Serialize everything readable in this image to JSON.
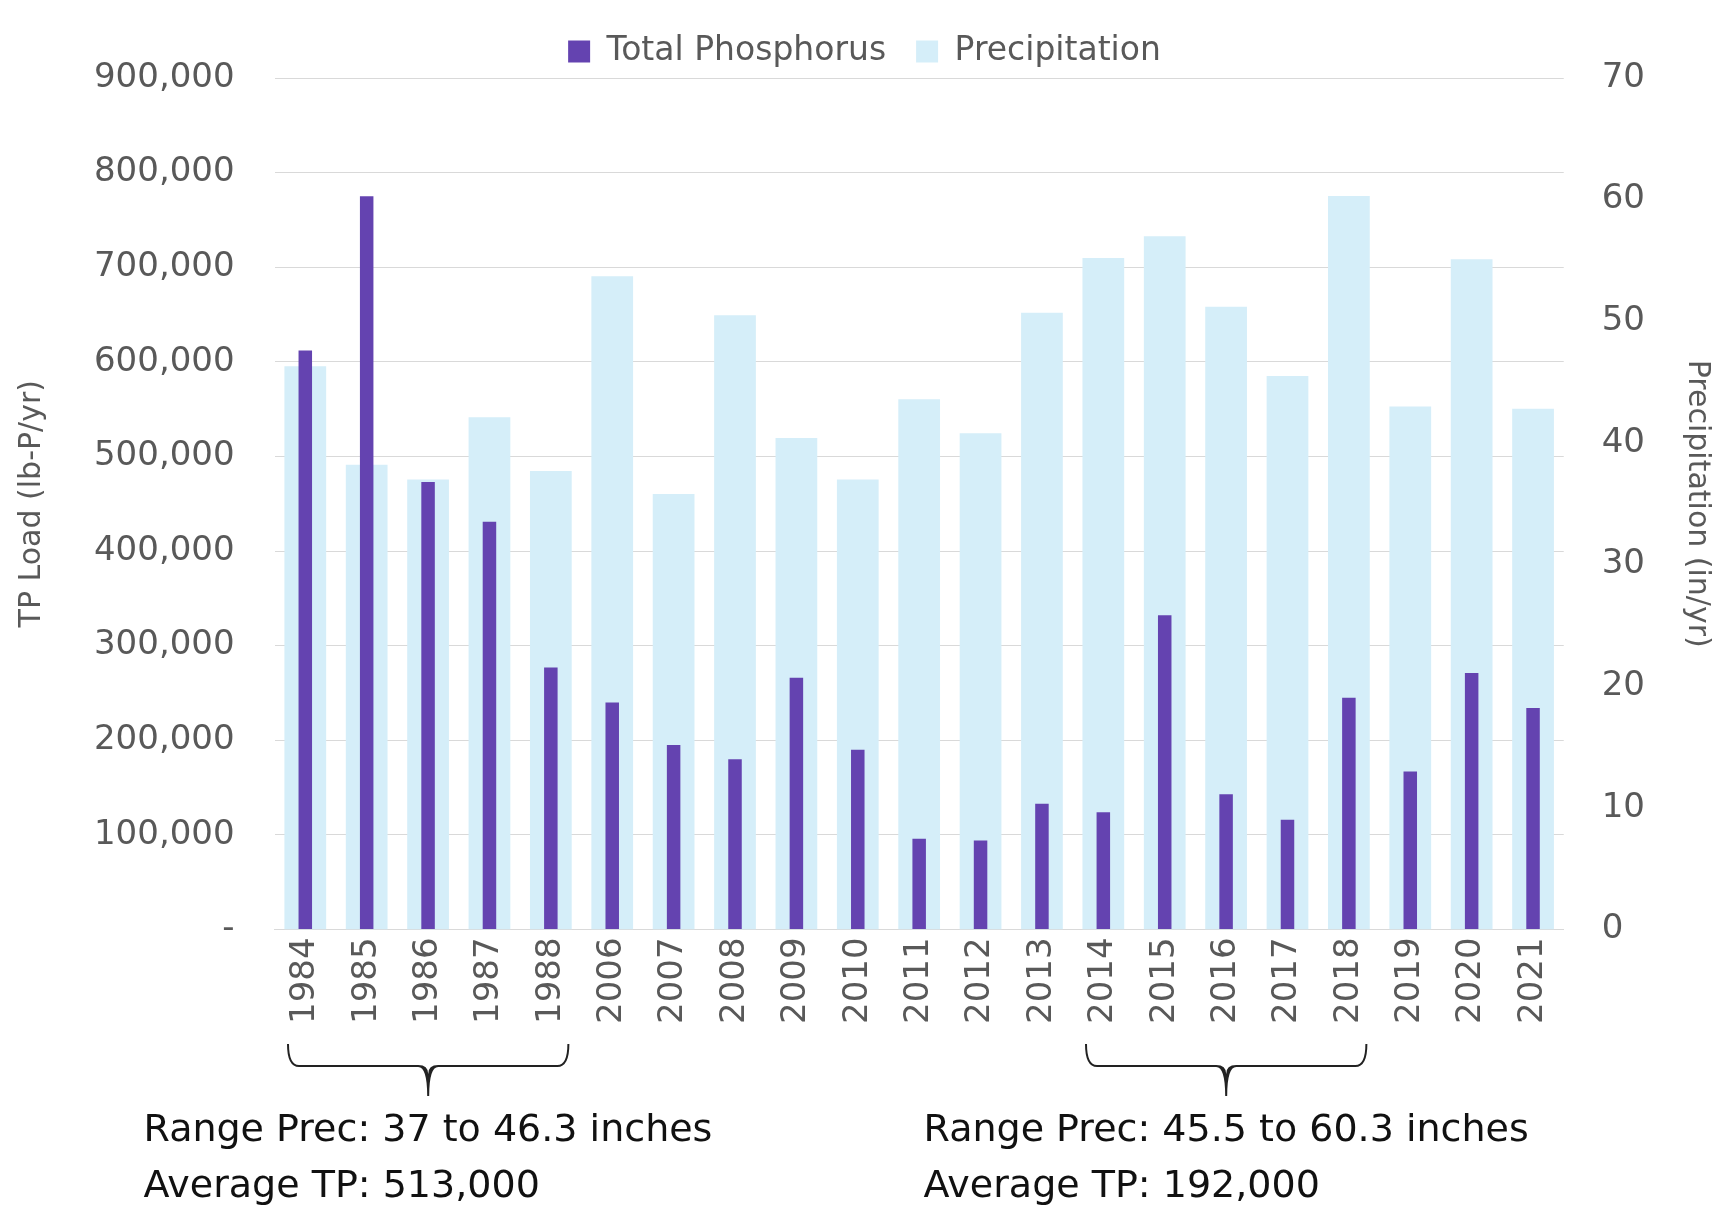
{
  "chart_data": {
    "type": "bar",
    "ylabel": "TP Load (lb-P/yr)",
    "y2label": "Precipitation (in/yr)",
    "categories": [
      "1984",
      "1985",
      "1986",
      "1987",
      "1988",
      "2006",
      "2007",
      "2008",
      "2009",
      "2010",
      "2011",
      "2012",
      "2013",
      "2014",
      "2015",
      "2016",
      "2017",
      "2018",
      "2019",
      "2020",
      "2021"
    ],
    "series": [
      {
        "name": "Total Phosphorus",
        "color": "#6443b0",
        "values": [
          612000,
          775000,
          473000,
          431000,
          277000,
          240000,
          195000,
          180000,
          266000,
          190000,
          96000,
          94000,
          133000,
          124000,
          332000,
          143000,
          116000,
          245000,
          167000,
          271000,
          234000
        ]
      },
      {
        "name": "Precipitation",
        "axis": "y2",
        "color": "#d5eef9",
        "values": [
          46.3,
          38.2,
          37.0,
          42.1,
          37.7,
          53.7,
          35.8,
          50.5,
          40.4,
          37.0,
          43.6,
          40.8,
          50.7,
          55.2,
          57.0,
          51.2,
          45.5,
          60.3,
          43.0,
          55.1,
          42.8
        ]
      }
    ],
    "ylim": [
      0,
      900000
    ],
    "yticks": [
      {
        "value": 0,
        "label": "-"
      },
      {
        "value": 100000,
        "label": "100,000"
      },
      {
        "value": 200000,
        "label": "200,000"
      },
      {
        "value": 300000,
        "label": "300,000"
      },
      {
        "value": 400000,
        "label": "400,000"
      },
      {
        "value": 500000,
        "label": "500,000"
      },
      {
        "value": 600000,
        "label": "600,000"
      },
      {
        "value": 700000,
        "label": "700,000"
      },
      {
        "value": 800000,
        "label": "800,000"
      },
      {
        "value": 900000,
        "label": "900,000"
      }
    ],
    "y2lim": [
      0,
      70
    ],
    "y2ticks": [
      0,
      10,
      20,
      30,
      40,
      50,
      60,
      70
    ],
    "grid": "y",
    "legend": "top",
    "annotations": [
      "Range Prec: 37 to 46.3 inches",
      "Average TP: 513,000",
      "Range Prec: 45.5 to 60.3 inches",
      "Average TP: 192,000"
    ]
  }
}
